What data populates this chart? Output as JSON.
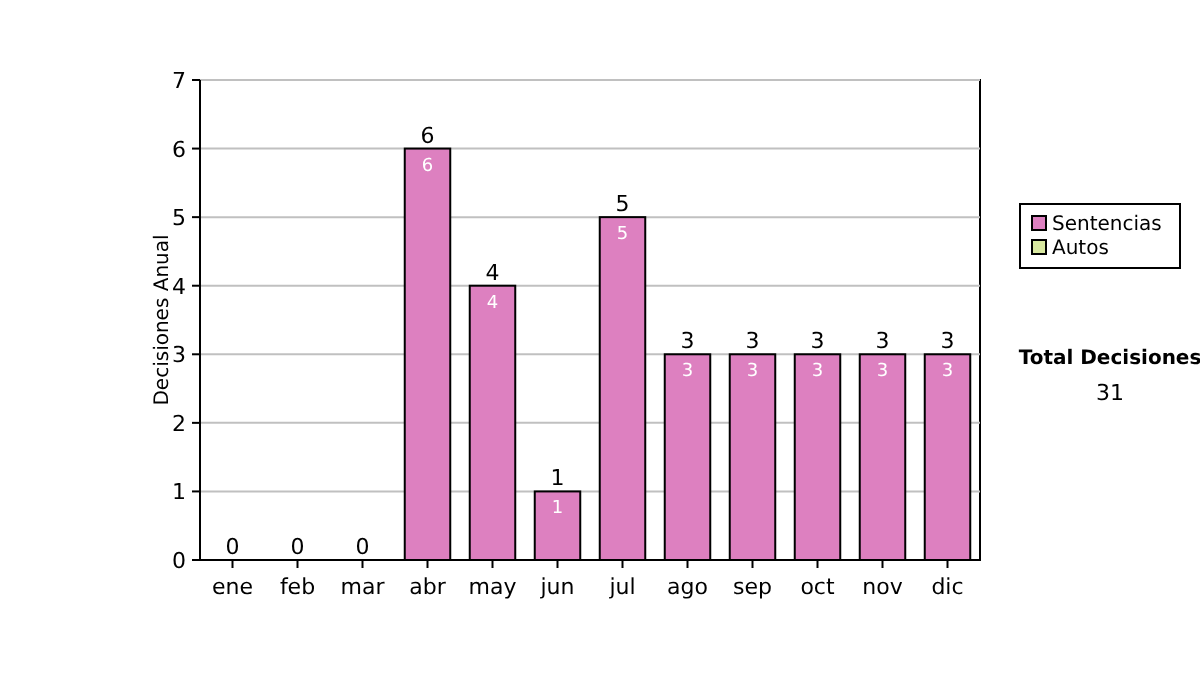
{
  "chart_data": {
    "type": "bar",
    "ylabel": "Decisiones Anual",
    "categories": [
      "ene",
      "feb",
      "mar",
      "abr",
      "may",
      "jun",
      "jul",
      "ago",
      "sep",
      "oct",
      "nov",
      "dic"
    ],
    "stacked": true,
    "series": [
      {
        "name": "Sentencias",
        "color": "#dd80c0",
        "values": [
          0,
          0,
          0,
          6,
          4,
          1,
          5,
          3,
          3,
          3,
          3,
          3
        ],
        "value_labels": [
          null,
          null,
          null,
          "6",
          "4",
          "1",
          "5",
          "3",
          "3",
          "3",
          "3",
          "3"
        ]
      },
      {
        "name": "Autos",
        "color": "#d8e8a0",
        "values": [
          0,
          0,
          0,
          0,
          0,
          0,
          0,
          0,
          0,
          0,
          0,
          0
        ]
      }
    ],
    "totals": [
      "0",
      "0",
      "0",
      "6",
      "4",
      "1",
      "5",
      "3",
      "3",
      "3",
      "3",
      "3"
    ],
    "ylim": [
      0,
      7
    ],
    "yticks": [
      0,
      1,
      2,
      3,
      4,
      5,
      6,
      7
    ],
    "grid": "y",
    "legend": "right",
    "annotations": [
      "Total Decisiones",
      "31"
    ]
  }
}
